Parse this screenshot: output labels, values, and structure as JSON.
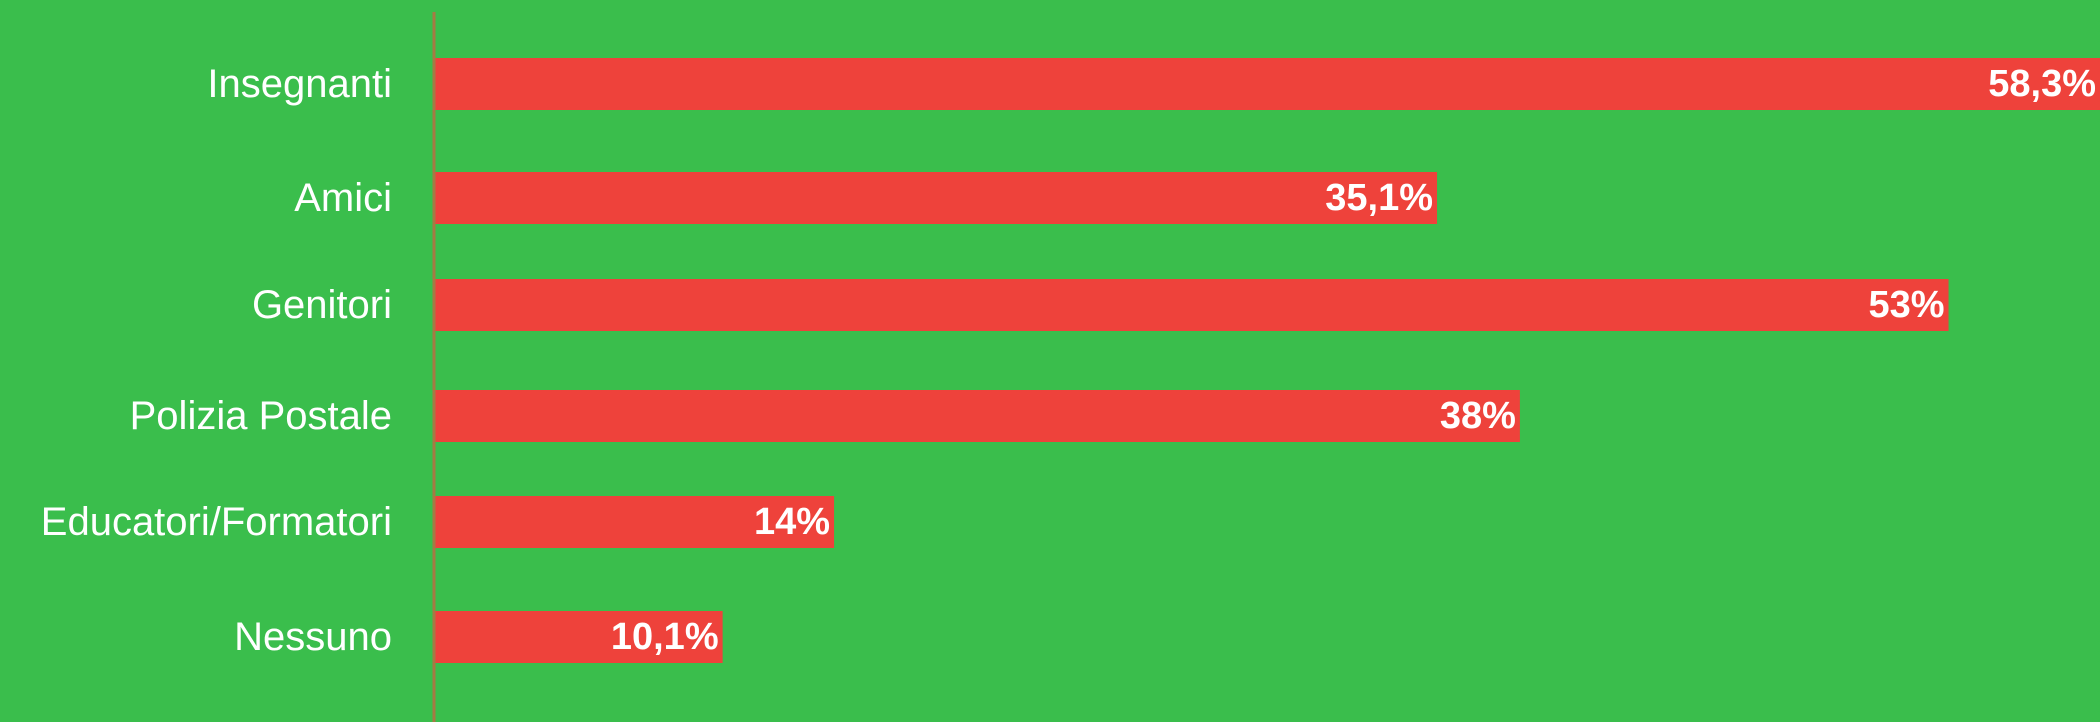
{
  "chart_data": {
    "type": "bar",
    "orientation": "horizontal",
    "categories": [
      "Insegnanti",
      "Amici",
      "Genitori",
      "Polizia Postale",
      "Educatori/Formatori",
      "Nessuno"
    ],
    "values": [
      58.3,
      35.1,
      53,
      38,
      14,
      10.1
    ],
    "value_labels": [
      "58,3%",
      "35,1%",
      "53%",
      "38%",
      "14%",
      "10,1%"
    ],
    "title": "",
    "xlabel": "",
    "ylabel": "",
    "xlim": [
      0,
      58.3
    ],
    "grid": false,
    "legend": "none"
  },
  "colors": {
    "background": "#3abe4c",
    "bar": "#ee423b",
    "axis": "#a67a44",
    "text": "#ffffff"
  }
}
